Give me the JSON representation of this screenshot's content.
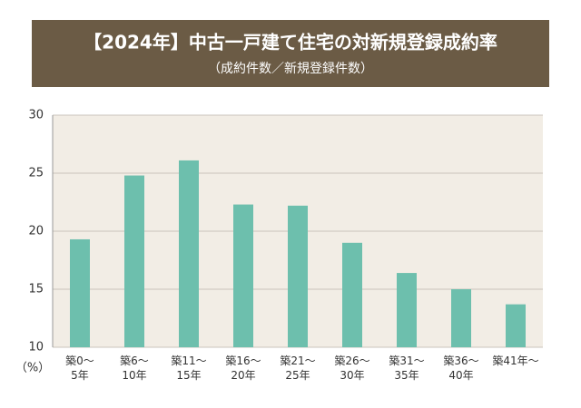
{
  "chart_data": {
    "type": "bar",
    "title": "【2024年】中古一戸建て住宅の対新規登録成約率",
    "subtitle": "（成約件数／新規登録件数）",
    "y_unit": "（%）",
    "categories": [
      "築0～\n5年",
      "築6～\n10年",
      "築11～\n15年",
      "築16～\n20年",
      "築21～\n25年",
      "築26～\n30年",
      "築31～\n35年",
      "築36～\n40年",
      "築41年～"
    ],
    "values": [
      19.3,
      24.8,
      26.1,
      22.3,
      22.2,
      19.0,
      16.4,
      15.0,
      13.7
    ],
    "color": "#6dbfad",
    "ylim": [
      10,
      30
    ],
    "yticks": [
      10,
      15,
      20,
      25,
      30
    ],
    "grid": true
  }
}
